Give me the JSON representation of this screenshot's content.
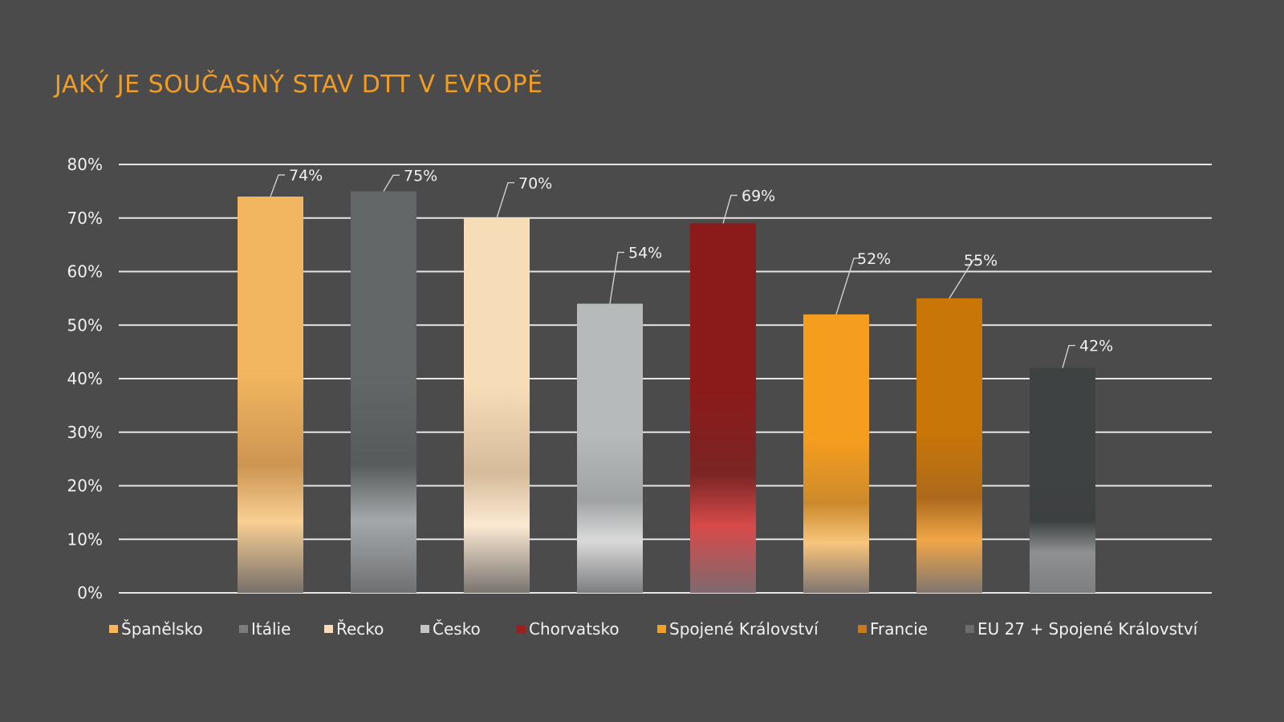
{
  "colors": {
    "background": "#4b4b4b",
    "title": "#f39c24",
    "grid": "#e6e6e6",
    "text": "#f2f2f2"
  },
  "chart_data": {
    "type": "bar",
    "title": "JAKÝ JE SOUČASNÝ STAV DTT V EVROPĚ",
    "categories": [
      "Španělsko",
      "Itálie",
      "Řecko",
      "Česko",
      "Chorvatsko",
      "Spojené Království",
      "Francie",
      "EU 27 + Spojené Království"
    ],
    "values": [
      74,
      75,
      70,
      54,
      69,
      52,
      55,
      42
    ],
    "data_labels": [
      "74%",
      "75%",
      "70%",
      "54%",
      "69%",
      "52%",
      "55%",
      "42%"
    ],
    "ylim": [
      0,
      80
    ],
    "yticks": [
      "0%",
      "10%",
      "20%",
      "30%",
      "40%",
      "50%",
      "60%",
      "70%",
      "80%"
    ],
    "grid": true,
    "legend_position": "bottom",
    "series_colors": [
      {
        "top": "#f2b660",
        "mid": "#cc9552",
        "low": "#f9cf93",
        "bottom": "#77706a"
      },
      {
        "top": "#646767",
        "mid": "#575b5b",
        "low": "#a5a8aa",
        "bottom": "#6e7072"
      },
      {
        "top": "#f6dcb7",
        "mid": "#d6bb9b",
        "low": "#fbe9d3",
        "bottom": "#7a7570"
      },
      {
        "top": "#b7babb",
        "mid": "#a0a3a4",
        "low": "#dadada",
        "bottom": "#7d7e80"
      },
      {
        "top": "#8b1a1a",
        "mid": "#7b2525",
        "low": "#d84a4a",
        "bottom": "#7d6a6e"
      },
      {
        "top": "#f59d1e",
        "mid": "#cc8a2c",
        "low": "#f8c57c",
        "bottom": "#7f7670"
      },
      {
        "top": "#c97608",
        "mid": "#ad6a1c",
        "low": "#f0a648",
        "bottom": "#807670"
      },
      {
        "top": "#3f4243",
        "mid": "#3d4041",
        "low": "#8e9092",
        "bottom": "#7c7e80"
      }
    ],
    "legend_swatches": [
      "#f6b55e",
      "#7a7d7e",
      "#f8ddb8",
      "#c4c6c7",
      "#9c2020",
      "#f5a025",
      "#c97a14",
      "#6a6c6d"
    ]
  }
}
